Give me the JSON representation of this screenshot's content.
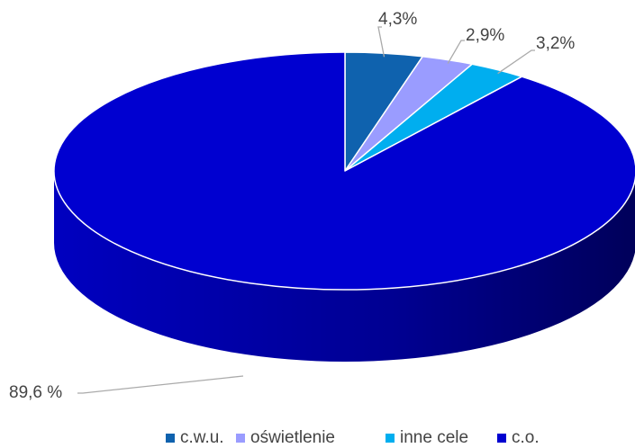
{
  "chart_data": {
    "type": "pie3d",
    "categories": [
      "c.w.u.",
      "oświetlenie",
      "inne cele",
      "c.o."
    ],
    "values": [
      4.3,
      2.9,
      3.2,
      89.6
    ],
    "value_labels": [
      "4,3%",
      "2,9%",
      "3,2%",
      "89,6 %"
    ],
    "colors": [
      "#0f62ae",
      "#9a9cff",
      "#00aeef",
      "#0000d0"
    ],
    "legend": "bottom"
  }
}
